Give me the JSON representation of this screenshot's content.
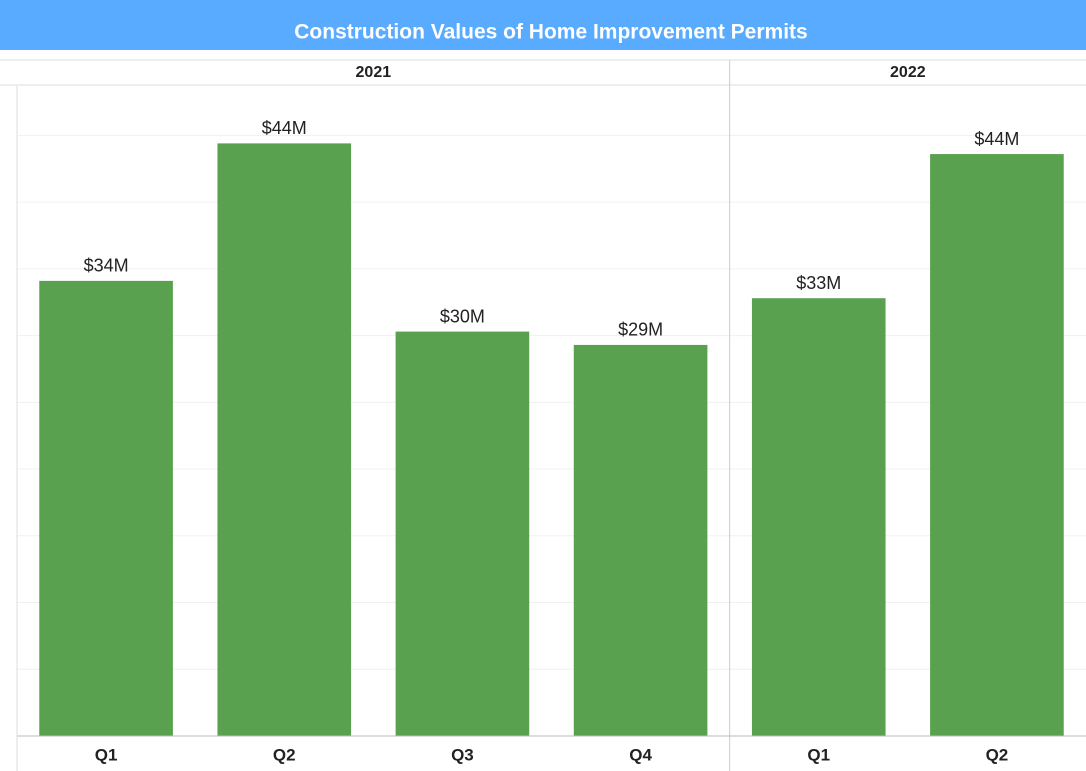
{
  "chart_data": {
    "type": "bar",
    "title": "Construction Values of Home Improvement Permits",
    "color": "#59a14f",
    "grid": true,
    "ylim": [
      0,
      48.7
    ],
    "yticks": [
      0,
      5,
      10,
      15,
      20,
      25,
      30,
      35,
      40,
      45
    ],
    "groups": [
      {
        "name": "2021",
        "categories": [
          "Q1",
          "Q2",
          "Q3",
          "Q4"
        ],
        "values": [
          34.1,
          44.4,
          30.3,
          29.3
        ],
        "value_labels": [
          "$34M",
          "$44M",
          "$30M",
          "$29M"
        ]
      },
      {
        "name": "2022",
        "categories": [
          "Q1",
          "Q2"
        ],
        "values": [
          32.8,
          43.6
        ],
        "value_labels": [
          "$33M",
          "$44M"
        ]
      }
    ]
  }
}
